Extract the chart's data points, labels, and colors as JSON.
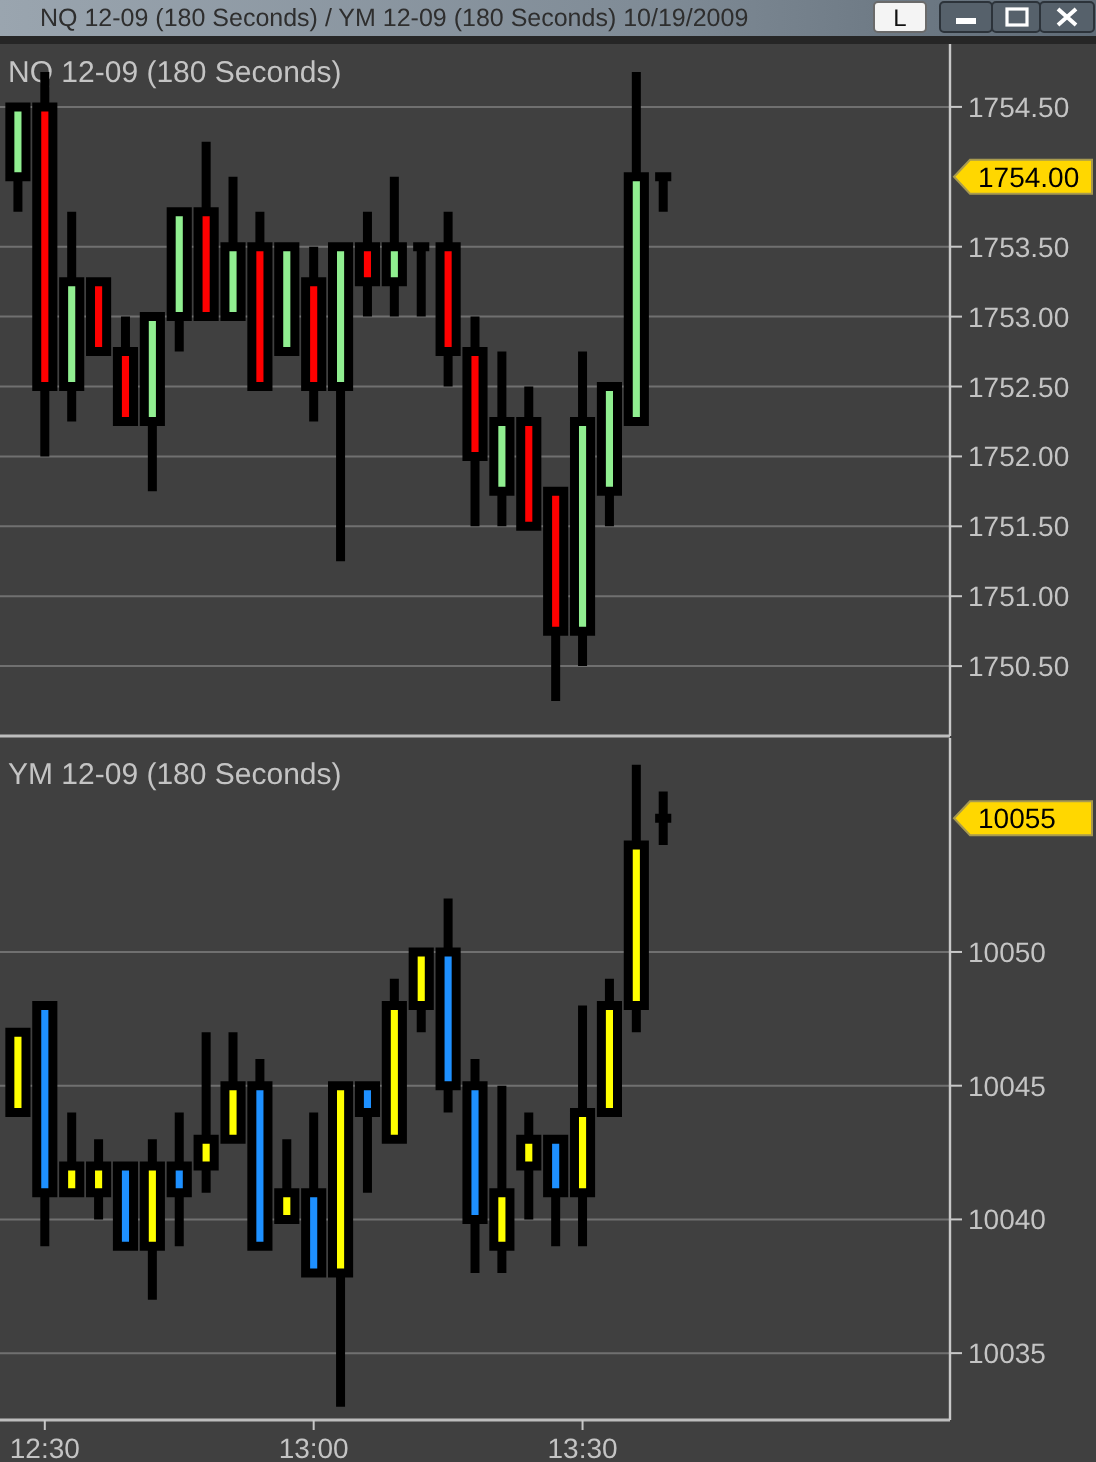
{
  "chart_data": [
    {
      "type": "candlestick",
      "title": "NQ 12-09 (180 Seconds)",
      "annotations": [
        "1754.00",
        "NQ 12-09 (180 Seconds) / YM 12-09 (180 Seconds)  10/19/2009",
        "L"
      ],
      "x": [
        "2009-10-19T12:27",
        "2009-10-19T12:30",
        "2009-10-19T12:33",
        "2009-10-19T12:36",
        "2009-10-19T12:39",
        "2009-10-19T12:42",
        "2009-10-19T12:45",
        "2009-10-19T12:48",
        "2009-10-19T12:51",
        "2009-10-19T12:54",
        "2009-10-19T12:57",
        "2009-10-19T13:00",
        "2009-10-19T13:03",
        "2009-10-19T13:06",
        "2009-10-19T13:09",
        "2009-10-19T13:12",
        "2009-10-19T13:15",
        "2009-10-19T13:18",
        "2009-10-19T13:21",
        "2009-10-19T13:24",
        "2009-10-19T13:27",
        "2009-10-19T13:30",
        "2009-10-19T13:33",
        "2009-10-19T13:36",
        "2009-10-19T13:39"
      ],
      "ohlc": [
        [
          1754.0,
          1754.5,
          1753.75,
          1754.5
        ],
        [
          1754.5,
          1754.75,
          1752.0,
          1752.5
        ],
        [
          1752.5,
          1753.75,
          1752.25,
          1753.25
        ],
        [
          1753.25,
          1753.25,
          1752.75,
          1752.75
        ],
        [
          1752.75,
          1753.0,
          1752.25,
          1752.25
        ],
        [
          1752.25,
          1753.0,
          1751.75,
          1753.0
        ],
        [
          1753.0,
          1753.75,
          1752.75,
          1753.75
        ],
        [
          1753.75,
          1754.25,
          1753.0,
          1753.0
        ],
        [
          1753.0,
          1754.0,
          1753.0,
          1753.5
        ],
        [
          1753.5,
          1753.75,
          1752.5,
          1752.5
        ],
        [
          1752.75,
          1753.5,
          1752.75,
          1753.5
        ],
        [
          1753.25,
          1753.5,
          1752.25,
          1752.5
        ],
        [
          1752.5,
          1753.5,
          1751.25,
          1753.5
        ],
        [
          1753.5,
          1753.75,
          1753.0,
          1753.25
        ],
        [
          1753.25,
          1754.0,
          1753.0,
          1753.5
        ],
        [
          1753.5,
          1753.5,
          1753.0,
          1753.5
        ],
        [
          1753.5,
          1753.75,
          1752.5,
          1752.75
        ],
        [
          1752.75,
          1753.0,
          1751.5,
          1752.0
        ],
        [
          1751.75,
          1752.75,
          1751.5,
          1752.25
        ],
        [
          1752.25,
          1752.5,
          1751.5,
          1751.5
        ],
        [
          1751.75,
          1751.75,
          1750.25,
          1750.75
        ],
        [
          1750.75,
          1752.75,
          1750.5,
          1752.25
        ],
        [
          1751.75,
          1752.5,
          1751.5,
          1752.5
        ],
        [
          1752.25,
          1754.75,
          1752.25,
          1754.0
        ],
        [
          1754.0,
          1754.0,
          1753.75,
          1754.0
        ]
      ],
      "colors": [
        "#90ee90",
        "#ff0000",
        "#90ee90",
        "#ff0000",
        "#ff0000",
        "#90ee90",
        "#90ee90",
        "#ff0000",
        "#90ee90",
        "#ff0000",
        "#90ee90",
        "#ff0000",
        "#90ee90",
        "#ff0000",
        "#90ee90",
        "#000000",
        "#ff0000",
        "#ff0000",
        "#90ee90",
        "#ff0000",
        "#ff0000",
        "#90ee90",
        "#90ee90",
        "#90ee90",
        "#000000"
      ],
      "xlim": [
        "2009-10-19T12:25",
        "2009-10-19T14:11"
      ],
      "ylim": [
        1750.0,
        1754.95
      ],
      "yticks": [
        {
          "value": 1750.5,
          "label": "1750.50"
        },
        {
          "value": 1751.0,
          "label": "1751.00"
        },
        {
          "value": 1751.5,
          "label": "1751.50"
        },
        {
          "value": 1752.0,
          "label": "1752.00"
        },
        {
          "value": 1752.5,
          "label": "1752.50"
        },
        {
          "value": 1753.0,
          "label": "1753.00"
        },
        {
          "value": 1753.5,
          "label": "1753.50"
        },
        {
          "value": 1754.5,
          "label": "1754.50"
        }
      ],
      "tick_labels": "y",
      "grid": "y"
    },
    {
      "type": "candlestick",
      "title": "YM 12-09 (180 Seconds)",
      "annotations": [
        "10055"
      ],
      "x": [
        "2009-10-19T12:27",
        "2009-10-19T12:30",
        "2009-10-19T12:33",
        "2009-10-19T12:36",
        "2009-10-19T12:39",
        "2009-10-19T12:42",
        "2009-10-19T12:45",
        "2009-10-19T12:48",
        "2009-10-19T12:51",
        "2009-10-19T12:54",
        "2009-10-19T12:57",
        "2009-10-19T13:00",
        "2009-10-19T13:03",
        "2009-10-19T13:06",
        "2009-10-19T13:09",
        "2009-10-19T13:12",
        "2009-10-19T13:15",
        "2009-10-19T13:18",
        "2009-10-19T13:21",
        "2009-10-19T13:24",
        "2009-10-19T13:27",
        "2009-10-19T13:30",
        "2009-10-19T13:33",
        "2009-10-19T13:36",
        "2009-10-19T13:39"
      ],
      "ohlc": [
        [
          10044,
          10047,
          10044,
          10047
        ],
        [
          10048,
          10048,
          10039,
          10041
        ],
        [
          10041,
          10044,
          10041,
          10042
        ],
        [
          10041,
          10043,
          10040,
          10042
        ],
        [
          10042,
          10042,
          10039,
          10039
        ],
        [
          10039,
          10043,
          10037,
          10042
        ],
        [
          10042,
          10044,
          10039,
          10041
        ],
        [
          10042,
          10047,
          10041,
          10043
        ],
        [
          10043,
          10047,
          10043,
          10045
        ],
        [
          10045,
          10046,
          10039,
          10039
        ],
        [
          10040,
          10043,
          10040,
          10041
        ],
        [
          10041,
          10044,
          10038,
          10038
        ],
        [
          10038,
          10045,
          10033,
          10045
        ],
        [
          10045,
          10045,
          10041,
          10044
        ],
        [
          10043,
          10049,
          10043,
          10048
        ],
        [
          10048,
          10050,
          10047,
          10050
        ],
        [
          10050,
          10052,
          10044,
          10045
        ],
        [
          10045,
          10046,
          10038,
          10040
        ],
        [
          10039,
          10045,
          10038,
          10041
        ],
        [
          10042,
          10044,
          10040,
          10043
        ],
        [
          10043,
          10043,
          10039,
          10041
        ],
        [
          10041,
          10048,
          10039,
          10044
        ],
        [
          10044,
          10049,
          10044,
          10048
        ],
        [
          10048,
          10057,
          10047,
          10054
        ],
        [
          10055,
          10056,
          10054,
          10055
        ]
      ],
      "colors": [
        "#ffff00",
        "#1e90ff",
        "#ffff00",
        "#ffff00",
        "#1e90ff",
        "#ffff00",
        "#1e90ff",
        "#ffff00",
        "#ffff00",
        "#1e90ff",
        "#ffff00",
        "#1e90ff",
        "#ffff00",
        "#1e90ff",
        "#ffff00",
        "#ffff00",
        "#1e90ff",
        "#1e90ff",
        "#ffff00",
        "#ffff00",
        "#1e90ff",
        "#ffff00",
        "#ffff00",
        "#ffff00",
        "#000000"
      ],
      "xlim": [
        "2009-10-19T12:25",
        "2009-10-19T14:11"
      ],
      "xticks": [
        {
          "value": "2009-10-19T12:30",
          "label": "12:30"
        },
        {
          "value": "2009-10-19T13:00",
          "label": "13:00"
        },
        {
          "value": "2009-10-19T13:30",
          "label": "13:30"
        }
      ],
      "ylim": [
        10032.5,
        10058
      ],
      "yticks": [
        10035,
        10040,
        10045,
        10050
      ],
      "grid": "y"
    }
  ]
}
